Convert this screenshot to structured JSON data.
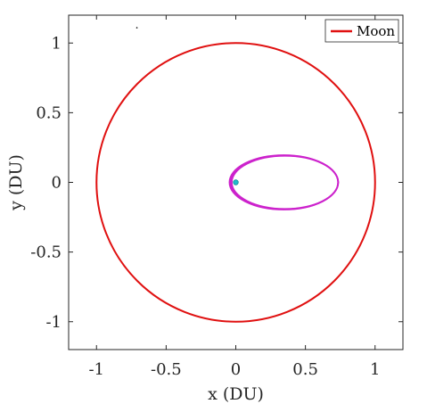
{
  "chart_data": {
    "type": "line",
    "xlabel": "x (DU)",
    "ylabel": "y (DU)",
    "xlim": [
      -1.2,
      1.2
    ],
    "ylim": [
      -1.2,
      1.2
    ],
    "xticks": [
      -1,
      -0.5,
      0,
      0.5,
      1
    ],
    "yticks": [
      -1,
      -0.5,
      0,
      0.5,
      1
    ],
    "xtick_labels": [
      "-1",
      "-0.5",
      "0",
      "0.5",
      "1"
    ],
    "ytick_labels": [
      "-1",
      "-0.5",
      "0",
      "0.5",
      "1"
    ],
    "grid": false,
    "legend": {
      "placement": "top-right",
      "entries": [
        "Moon"
      ]
    },
    "series": [
      {
        "name": "Moon",
        "kind": "circle",
        "center": [
          0,
          0
        ],
        "radius": 1.0,
        "color": "#e01010"
      },
      {
        "kind": "ellipse-band",
        "center": [
          0.345,
          0.0
        ],
        "semi_axis_x": 0.39,
        "semi_axis_y": 0.195,
        "band_offsets": [
          0.0,
          0.008,
          0.016
        ],
        "color": "#cc22cc"
      },
      {
        "kind": "point",
        "x": 0,
        "y": 0,
        "color": "#22bbcc"
      },
      {
        "kind": "point",
        "x": -0.71,
        "y": 1.11,
        "color": "#000000"
      }
    ]
  }
}
